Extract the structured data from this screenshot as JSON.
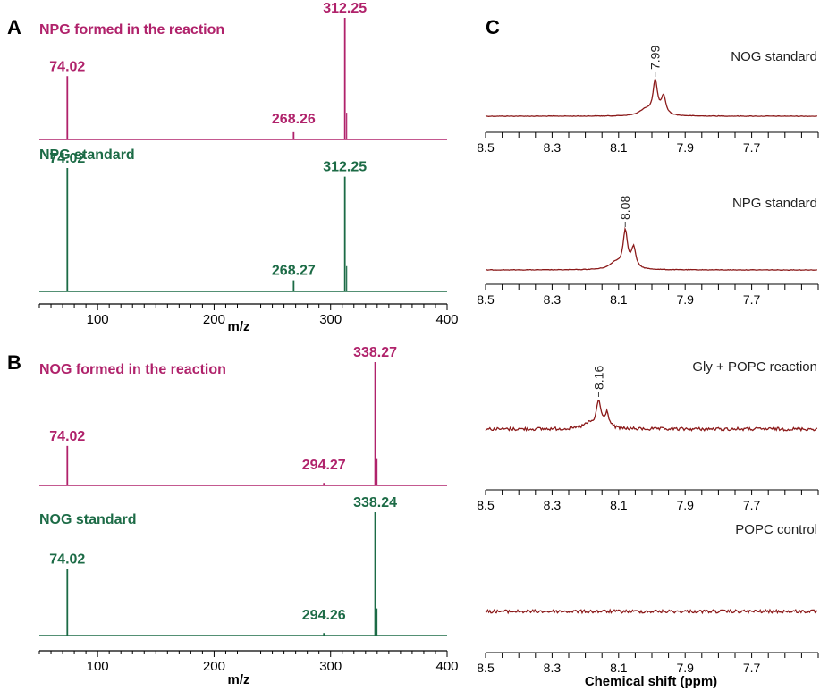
{
  "colors": {
    "magenta": "#b0226b",
    "green": "#1c6b46",
    "nmr": "#8b1a1a",
    "axis": "#000000"
  },
  "panels": {
    "A": "A",
    "B": "B",
    "C": "C"
  },
  "ms_axis": {
    "ticks": [
      "100",
      "200",
      "300",
      "400"
    ],
    "xlabel": "m/z"
  },
  "nmr_axis": {
    "ticks": [
      "8.5",
      "8.3",
      "8.1",
      "7.9",
      "7.7"
    ],
    "xlabel": "Chemical  shift (ppm)"
  },
  "chart_data": [
    {
      "type": "line",
      "panel": "A",
      "xlabel": "m/z",
      "xlim": [
        50,
        400
      ],
      "series": [
        {
          "name": "NPG formed in the reaction",
          "color": "#b0226b",
          "peaks": [
            {
              "x": 74.02,
              "y": 0.52,
              "label": "74.02"
            },
            {
              "x": 268.26,
              "y": 0.06,
              "label": "268.26"
            },
            {
              "x": 312.25,
              "y": 1.0,
              "label": "312.25"
            }
          ]
        },
        {
          "name": "NPG standard",
          "color": "#1c6b46",
          "peaks": [
            {
              "x": 74.02,
              "y": 1.0,
              "label": "74.02"
            },
            {
              "x": 268.27,
              "y": 0.09,
              "label": "268.27"
            },
            {
              "x": 312.25,
              "y": 0.93,
              "label": "312.25"
            }
          ]
        }
      ]
    },
    {
      "type": "line",
      "panel": "B",
      "xlabel": "m/z",
      "xlim": [
        50,
        400
      ],
      "series": [
        {
          "name": "NOG formed in the reaction",
          "color": "#b0226b",
          "peaks": [
            {
              "x": 74.02,
              "y": 0.32,
              "label": "74.02"
            },
            {
              "x": 294.27,
              "y": 0.02,
              "label": "294.27"
            },
            {
              "x": 338.27,
              "y": 1.0,
              "label": "338.27"
            }
          ]
        },
        {
          "name": "NOG standard",
          "color": "#1c6b46",
          "peaks": [
            {
              "x": 74.02,
              "y": 0.54,
              "label": "74.02"
            },
            {
              "x": 294.26,
              "y": 0.02,
              "label": "294.26"
            },
            {
              "x": 338.24,
              "y": 1.0,
              "label": "338.24"
            }
          ]
        }
      ]
    },
    {
      "type": "line",
      "panel": "C",
      "xlabel": "Chemical  shift (ppm)",
      "xlim": [
        8.5,
        7.5
      ],
      "series": [
        {
          "name": "NOG  standard",
          "peak": 7.99,
          "peak_label": "7.99",
          "noise": 0.02
        },
        {
          "name": "NPG  standard",
          "peak": 8.08,
          "peak_label": "8.08",
          "noise": 0.02
        },
        {
          "name": "Gly  +  POPC  reaction",
          "peak": 8.16,
          "peak_label": "8.16",
          "noise": 0.12
        },
        {
          "name": "POPC  control",
          "noise": 0.12
        }
      ]
    }
  ]
}
